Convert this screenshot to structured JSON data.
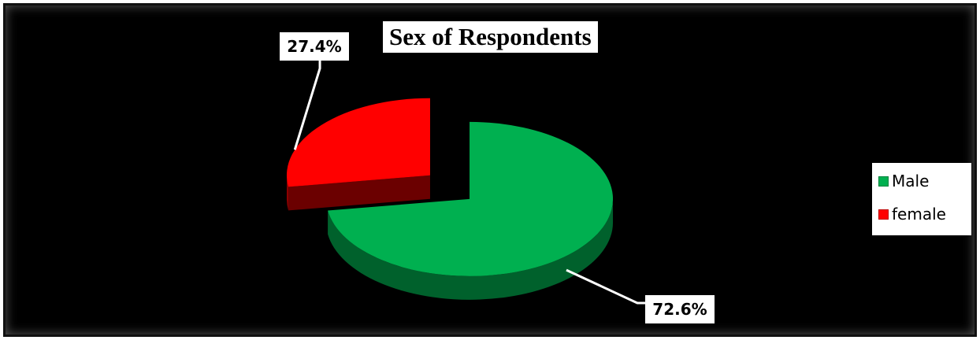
{
  "chart_data": {
    "type": "pie",
    "title": "Sex of Respondents",
    "categories": [
      "Male",
      "female"
    ],
    "values": [
      72.6,
      27.4
    ],
    "data_labels": [
      "72.6%",
      "27.4%"
    ],
    "colors": [
      "#00B050",
      "#FF0000"
    ],
    "style": "3d-exploded",
    "legend_placement": "right",
    "background": "#000000"
  }
}
